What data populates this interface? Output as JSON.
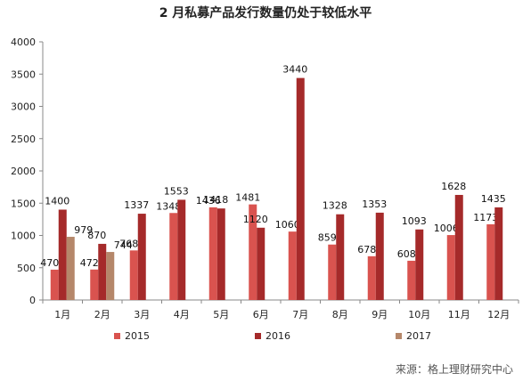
{
  "chart_data": {
    "type": "bar",
    "title": "2 月私募产品发行数量仍处于较低水平",
    "categories": [
      "1月",
      "2月",
      "3月",
      "4月",
      "5月",
      "6月",
      "7月",
      "8月",
      "9月",
      "10月",
      "11月",
      "12月"
    ],
    "series": [
      {
        "name": "2015",
        "color": "#d9534f",
        "values": [
          470,
          472,
          768,
          1348,
          1436,
          1481,
          1060,
          859,
          678,
          608,
          1006,
          1173
        ]
      },
      {
        "name": "2016",
        "color": "#a52a2a",
        "values": [
          1400,
          870,
          1337,
          1553,
          1418,
          1120,
          3440,
          1328,
          1353,
          1093,
          1628,
          1435
        ]
      },
      {
        "name": "2017",
        "color": "#b5876a",
        "values": [
          979,
          744,
          null,
          null,
          null,
          null,
          null,
          null,
          null,
          null,
          null,
          null
        ]
      }
    ],
    "y_ticks": [
      "0",
      "500",
      "1000",
      "1500",
      "2000",
      "2500",
      "3000",
      "3500",
      "4000"
    ],
    "ylim": [
      0,
      4000
    ],
    "legend_position": "bottom",
    "grid": false
  },
  "source": "来源：格上理财研究中心"
}
